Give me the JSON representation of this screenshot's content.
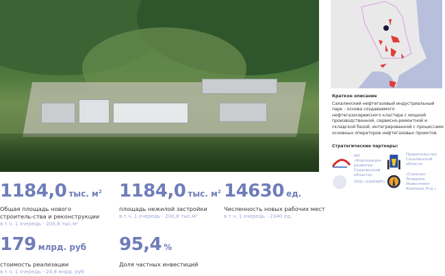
{
  "photo": {
    "alt_icon": "aerial-photo"
  },
  "map": {
    "icon": "region-map",
    "colors": {
      "land": "#e9e9e9",
      "water": "#b7bfdc",
      "zones": "#e23b3b",
      "border": "#d6a0e0",
      "marker": "#1a1a3a"
    }
  },
  "description": {
    "title": "Краткое описание",
    "text": "Сахалинский нефтегазовый индустриальный парк - основа создаваемого нефтегазосервисного кластера с мощной производственной, сервисно-ремонтной и складской базой, интегрированной с процессами основных операторов нефтегазовых проектов."
  },
  "partners": {
    "title": "Стратегические партнеры:",
    "items": [
      {
        "name": "АО «Корпорация развития Сахалинской области»",
        "logo": "corporation-arc-logo"
      },
      {
        "name": "Правительство Сахалинской области",
        "logo": "coat-of-arms-logo"
      },
      {
        "name": "ООО «САХНИП»",
        "logo": "circle-logo"
      },
      {
        "name": "«Сахалин Энерджи Инвестмент Компани Лтд.»",
        "logo": "sakhalin-energy-seal-logo"
      }
    ]
  },
  "stats": [
    {
      "value": "1184,0",
      "unit": "тыс. м",
      "sup": "2",
      "label": "Общая площадь нового строитель-ства и реконструкции",
      "sub": "в т.ч. 1 очередь - 200,8 тыс.м²"
    },
    {
      "value": "1184,0",
      "unit": "тыс. м",
      "sup": "2",
      "label": "площадь нежилой застройки",
      "sub": "в т.ч. 1 очередь - 200,8 тыс.м²"
    },
    {
      "value": "14630",
      "unit": "ед.",
      "sup": "",
      "label": "Численность новых рабочих мест",
      "sub": "в т.ч. 1 очередь - 2340 ед."
    },
    {
      "value": "179",
      "unit": "млрд. руб",
      "sup": "",
      "label": "стоимость реализации",
      "sub": "в т.ч. 1 очередь - 24,8 млрд. руб"
    },
    {
      "value": "95,4",
      "unit": "%",
      "sup": "",
      "label": "Доля частных инвестиций",
      "sub": ""
    }
  ],
  "colors": {
    "accent": "#6f7db9",
    "sub": "#9aa6d8"
  }
}
